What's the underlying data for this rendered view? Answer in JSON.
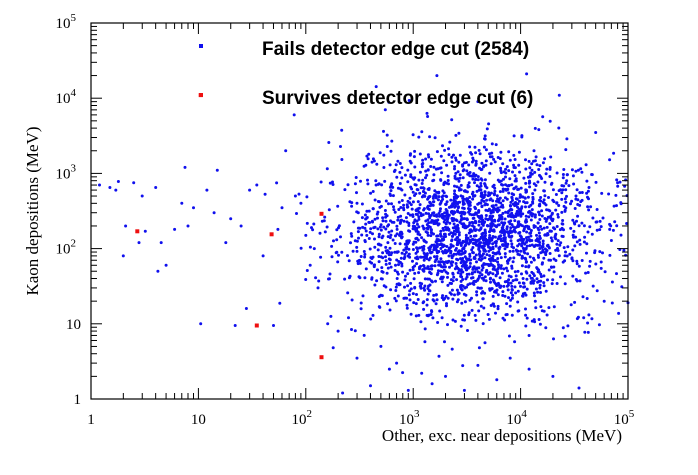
{
  "chart_data": {
    "type": "scatter",
    "xlabel": "Other, exc. near depositions (MeV)",
    "ylabel": "Kaon depositions (MeV)",
    "x_scale": "log",
    "y_scale": "log",
    "xlim": [
      1,
      100000
    ],
    "ylim": [
      1,
      100000
    ],
    "x_ticks": [
      {
        "value": 1,
        "base": "1",
        "exp": ""
      },
      {
        "value": 10,
        "base": "10",
        "exp": ""
      },
      {
        "value": 100,
        "base": "10",
        "exp": "2"
      },
      {
        "value": 1000,
        "base": "10",
        "exp": "3"
      },
      {
        "value": 10000,
        "base": "10",
        "exp": "4"
      },
      {
        "value": 100000,
        "base": "10",
        "exp": "5"
      }
    ],
    "y_ticks": [
      {
        "value": 1,
        "base": "1",
        "exp": ""
      },
      {
        "value": 10,
        "base": "10",
        "exp": ""
      },
      {
        "value": 100,
        "base": "10",
        "exp": "2"
      },
      {
        "value": 1000,
        "base": "10",
        "exp": "3"
      },
      {
        "value": 10000,
        "base": "10",
        "exp": "4"
      },
      {
        "value": 100000,
        "base": "10",
        "exp": "5"
      }
    ],
    "legend_position": "top",
    "series": [
      {
        "name": "Fails detector edge cut (2584)",
        "color": "#1010ee",
        "marker": "dot",
        "count": 2584,
        "distribution": {
          "x_log10_center": 3.55,
          "x_log10_sd": 0.58,
          "y_log10_center": 2.22,
          "y_log10_sd": 0.55
        },
        "points": [
          [
            1.2,
            700
          ],
          [
            1.5,
            650
          ],
          [
            1.7,
            600
          ],
          [
            1.8,
            780
          ],
          [
            2.0,
            80
          ],
          [
            2.1,
            200
          ],
          [
            2.5,
            750
          ],
          [
            2.8,
            120
          ],
          [
            3.0,
            500
          ],
          [
            3.2,
            170
          ],
          [
            4.0,
            650
          ],
          [
            4.2,
            50
          ],
          [
            4.5,
            120
          ],
          [
            5.0,
            60
          ],
          [
            6.0,
            180
          ],
          [
            7.0,
            400
          ],
          [
            7.5,
            1200
          ],
          [
            8.0,
            200
          ],
          [
            9.0,
            350
          ],
          [
            10.5,
            10
          ],
          [
            12,
            600
          ],
          [
            14,
            300
          ],
          [
            15,
            1100
          ],
          [
            18,
            120
          ],
          [
            20,
            250
          ],
          [
            22,
            9.5
          ],
          [
            25,
            200
          ],
          [
            28,
            16
          ],
          [
            30,
            600
          ],
          [
            35,
            700
          ],
          [
            40,
            80
          ],
          [
            50,
            9.5
          ],
          [
            55,
            180
          ],
          [
            60,
            350
          ],
          [
            65,
            2000
          ],
          [
            78,
            6000
          ],
          [
            80,
            500
          ],
          [
            90,
            400
          ],
          [
            100,
            150
          ],
          [
            110,
            60
          ],
          [
            120,
            100
          ],
          [
            130,
            30
          ],
          [
            160,
            10
          ],
          [
            180,
            4.8
          ],
          [
            200,
            8
          ],
          [
            220,
            1.2
          ],
          [
            250,
            12
          ],
          [
            300,
            3.5
          ],
          [
            350,
            7
          ],
          [
            400,
            1.5
          ],
          [
            500,
            5
          ],
          [
            550,
            7000
          ],
          [
            600,
            2.5
          ],
          [
            700,
            3
          ],
          [
            900,
            1.3
          ],
          [
            1200,
            2.2
          ],
          [
            1500,
            1.6
          ],
          [
            2000,
            2
          ],
          [
            3000,
            1.3
          ],
          [
            4000,
            2.8
          ],
          [
            6000,
            1.8
          ],
          [
            8000,
            3.5
          ],
          [
            12000,
            2.5
          ],
          [
            20000,
            2
          ],
          [
            35000,
            1.4
          ],
          [
            50000,
            3500
          ],
          [
            60000,
            20
          ],
          [
            80000,
            750
          ],
          [
            95000,
            820
          ],
          [
            100000,
            19
          ],
          [
            2500,
            3200
          ],
          [
            4000,
            9000
          ]
        ]
      },
      {
        "name": "Survives detector edge cut (6)",
        "color": "#ee1010",
        "marker": "square",
        "count": 6,
        "points": [
          [
            2.7,
            170
          ],
          [
            35,
            9.5
          ],
          [
            48,
            155
          ],
          [
            140,
            3.6
          ],
          [
            140,
            290
          ],
          [
            10.5,
            11000
          ]
        ]
      }
    ]
  }
}
